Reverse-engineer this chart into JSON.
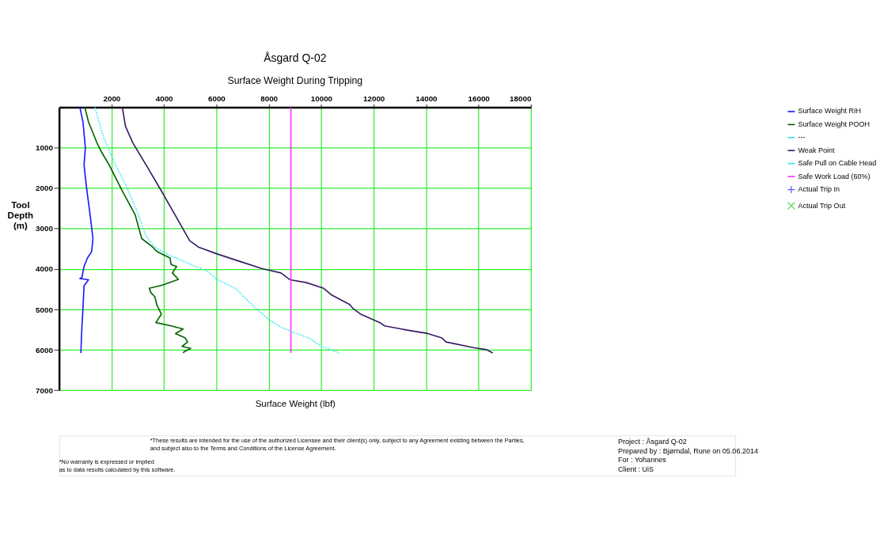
{
  "chart_data": {
    "type": "line",
    "title": "Åsgard Q-02",
    "subtitle": "Surface Weight During Tripping",
    "xlabel": "Surface Weight  (lbf)",
    "ylabel": "Tool Depth (m)",
    "xlim": [
      0,
      18000
    ],
    "xticks": [
      2000,
      4000,
      6000,
      8000,
      10000,
      12000,
      14000,
      16000,
      18000
    ],
    "ylim": [
      7000,
      0
    ],
    "yticks": [
      1000,
      2000,
      3000,
      4000,
      5000,
      6000,
      7000
    ],
    "grid": true,
    "legend": "right",
    "series": [
      {
        "name": "Surface Weight RIH",
        "color": "#1a1aff",
        "line_style": "solid",
        "x": [
          790,
          910,
          1000,
          950,
          1040,
          1200,
          1290,
          1240,
          1080,
          950,
          870,
          790,
          1120,
          950,
          910,
          870,
          850,
          830
        ],
        "values": [
          0,
          360,
          1000,
          1430,
          1960,
          2760,
          3250,
          3570,
          3730,
          3940,
          4210,
          4240,
          4270,
          4420,
          4960,
          5440,
          5710,
          6080
        ]
      },
      {
        "name": "Surface Weight POOH",
        "color": "#006400",
        "line_style": "solid",
        "x": [
          980,
          1120,
          1450,
          1620,
          1910,
          2410,
          2900,
          3150,
          3570,
          3730,
          3980,
          4230,
          4270,
          4480,
          4320,
          4550,
          3940,
          3440,
          3490,
          3650,
          3730,
          3900,
          3690,
          4270,
          4730,
          4440,
          4810,
          4900,
          4690,
          5020,
          4770,
          4730
        ],
        "values": [
          0,
          360,
          890,
          1110,
          1430,
          2070,
          2660,
          3250,
          3460,
          3570,
          3650,
          3730,
          3890,
          3940,
          4100,
          4260,
          4400,
          4480,
          4580,
          4690,
          4900,
          5120,
          5330,
          5410,
          5490,
          5600,
          5710,
          5810,
          5920,
          5970,
          6050,
          6080
        ]
      },
      {
        "name": "---",
        "color": "#33e6f0"
      },
      {
        "name": "Weak Point",
        "color": "#3a1a66",
        "line_style": "solid",
        "x": [
          2410,
          2530,
          2820,
          3320,
          3900,
          4560,
          4980,
          5310,
          5980,
          6970,
          7720,
          8460,
          8810,
          9430,
          10090,
          10380,
          11080,
          11210,
          11500,
          12240,
          12410,
          13320,
          14060,
          14600,
          14760,
          15800,
          16300,
          16540
        ],
        "values": [
          0,
          470,
          890,
          1430,
          2070,
          2820,
          3300,
          3460,
          3620,
          3830,
          3990,
          4100,
          4270,
          4340,
          4480,
          4640,
          4880,
          4980,
          5120,
          5330,
          5410,
          5520,
          5600,
          5710,
          5810,
          5950,
          6000,
          6080
        ]
      },
      {
        "name": "Safe Pull on Cable Head",
        "color": "#33e6f0",
        "line_style": "dotted",
        "x": [
          1370,
          1660,
          2070,
          2570,
          2990,
          3320,
          3650,
          4070,
          4810,
          5310,
          5640,
          6020,
          6720,
          7470,
          8050,
          8460,
          8850,
          9520,
          10010,
          10670
        ],
        "values": [
          0,
          680,
          1320,
          1960,
          2600,
          3190,
          3460,
          3620,
          3830,
          3970,
          4050,
          4260,
          4480,
          4960,
          5280,
          5440,
          5550,
          5710,
          5920,
          6080
        ]
      },
      {
        "name": "Safe Work Load (60%)",
        "color": "#ff33ff",
        "line_style": "solid",
        "x": [
          8840,
          8840
        ],
        "values": [
          0,
          6080
        ]
      },
      {
        "name": "Actual Trip In",
        "type": "scatter",
        "marker": "plus",
        "color": "#1a1aff"
      },
      {
        "name": "Actual Trip Out",
        "type": "scatter",
        "marker": "cross",
        "color": "#22cc22"
      }
    ],
    "annotations": [
      "*These results are intended for the use of the authorized Licensee and their client(s) only, subject to any Agreement existing between the Parties,",
      "and subject also to the Terms and Conditions of the License Agreement.",
      "*No warranty is expressed or implied",
      "as to data results calculated by this software.",
      "Project :  Åsgard Q-02",
      "Prepared by :  Bjørndal, Rune on 05.06.2014",
      "For :  Yohannes",
      "Client :  UiS"
    ]
  }
}
